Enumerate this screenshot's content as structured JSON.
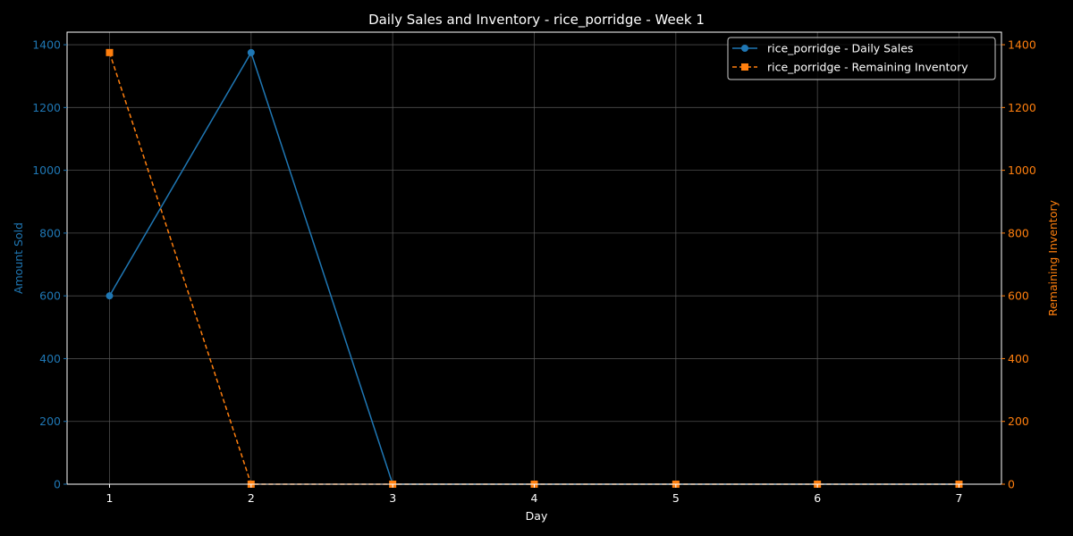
{
  "chart_data": {
    "type": "line",
    "title": "Daily Sales and Inventory - rice_porridge - Week 1",
    "xlabel": "Day",
    "ylabel_left": "Amount Sold",
    "ylabel_right": "Remaining Inventory",
    "x": [
      1,
      2,
      3,
      4,
      5,
      6,
      7
    ],
    "x_ticks": [
      "1",
      "2",
      "3",
      "4",
      "5",
      "6",
      "7"
    ],
    "ylim_left": [
      0,
      1440
    ],
    "ylim_right": [
      0,
      1440
    ],
    "y_ticks_left": [
      "0",
      "200",
      "400",
      "600",
      "800",
      "1000",
      "1200",
      "1400"
    ],
    "y_ticks_right": [
      "0",
      "200",
      "400",
      "600",
      "800",
      "1000",
      "1200",
      "1400"
    ],
    "grid": true,
    "legend_position": "top-right",
    "series": [
      {
        "name": "rice_porridge - Daily Sales",
        "axis": "left",
        "color": "#1f77b4",
        "marker": "circle",
        "linestyle": "solid",
        "values": [
          600,
          1375,
          0,
          0,
          0,
          0,
          0
        ]
      },
      {
        "name": "rice_porridge - Remaining Inventory",
        "axis": "right",
        "color": "#ff7f0e",
        "marker": "square",
        "linestyle": "dashed",
        "values": [
          1375,
          0,
          0,
          0,
          0,
          0,
          0
        ]
      }
    ]
  },
  "colors": {
    "background": "#000000",
    "foreground": "#ffffff",
    "left_axis": "#1f77b4",
    "right_axis": "#ff7f0e",
    "grid": "#555555"
  }
}
